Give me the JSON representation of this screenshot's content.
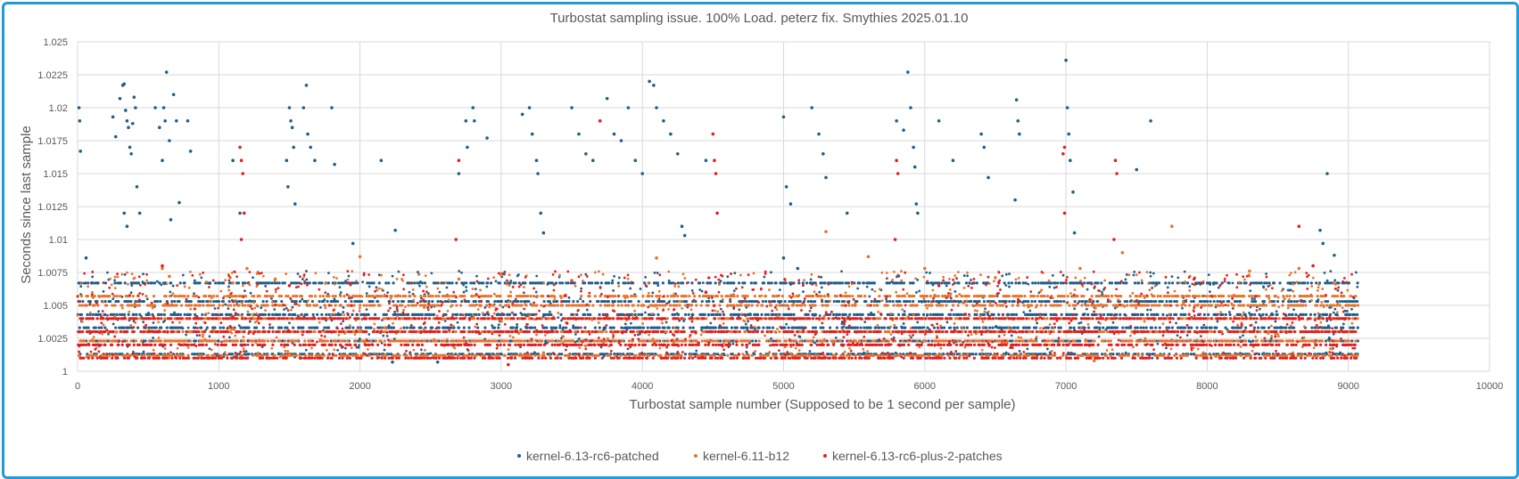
{
  "chart_data": {
    "type": "scatter",
    "title": "Turbostat sampling issue. 100% Load. peterz fix. Smythies 2025.01.10",
    "xlabel": "Turbostat sample number (Supposed to be 1 second per sample)",
    "ylabel": "Seconds since last sample",
    "xlim": [
      0,
      10000
    ],
    "ylim": [
      1,
      1.025
    ],
    "x_ticks": [
      "0",
      "1000",
      "2000",
      "3000",
      "4000",
      "5000",
      "6000",
      "7000",
      "8000",
      "9000",
      "10000"
    ],
    "y_ticks": [
      "1",
      "1.0025",
      "1.005",
      "1.0075",
      "1.01",
      "1.0125",
      "1.015",
      "1.0175",
      "1.02",
      "1.0225",
      "1.025"
    ],
    "grid": true,
    "legend_position": "bottom",
    "series": [
      {
        "name": "kernel-6.13-rc6-patched",
        "color": "#1f5f8b",
        "bands": [
          1.0013,
          1.0023,
          1.0033,
          1.0043,
          1.0053,
          1.0067
        ],
        "points": [
          [
            10,
            1.02
          ],
          [
            15,
            1.019
          ],
          [
            20,
            1.0167
          ],
          [
            60,
            1.0086
          ],
          [
            100,
            1.0067
          ],
          [
            250,
            1.0193
          ],
          [
            270,
            1.0178
          ],
          [
            300,
            1.0207
          ],
          [
            320,
            1.0217
          ],
          [
            330,
            1.0218
          ],
          [
            340,
            1.0198
          ],
          [
            350,
            1.019
          ],
          [
            360,
            1.0185
          ],
          [
            370,
            1.017
          ],
          [
            380,
            1.0165
          ],
          [
            390,
            1.0188
          ],
          [
            400,
            1.0208
          ],
          [
            410,
            1.02
          ],
          [
            420,
            1.014
          ],
          [
            440,
            1.012
          ],
          [
            330,
            1.012
          ],
          [
            350,
            1.011
          ],
          [
            550,
            1.02
          ],
          [
            580,
            1.0185
          ],
          [
            600,
            1.016
          ],
          [
            610,
            1.02
          ],
          [
            620,
            1.019
          ],
          [
            630,
            1.0227
          ],
          [
            650,
            1.0175
          ],
          [
            660,
            1.0115
          ],
          [
            680,
            1.021
          ],
          [
            700,
            1.019
          ],
          [
            720,
            1.0128
          ],
          [
            800,
            1.0167
          ],
          [
            780,
            1.019
          ],
          [
            1100,
            1.016
          ],
          [
            1150,
            1.012
          ],
          [
            1500,
            1.02
          ],
          [
            1510,
            1.019
          ],
          [
            1520,
            1.0185
          ],
          [
            1530,
            1.017
          ],
          [
            1480,
            1.016
          ],
          [
            1490,
            1.014
          ],
          [
            1540,
            1.0127
          ],
          [
            1600,
            1.02
          ],
          [
            1620,
            1.0217
          ],
          [
            1630,
            1.018
          ],
          [
            1650,
            1.017
          ],
          [
            1680,
            1.016
          ],
          [
            1800,
            1.02
          ],
          [
            1820,
            1.0157
          ],
          [
            2150,
            1.016
          ],
          [
            2800,
            1.02
          ],
          [
            2810,
            1.019
          ],
          [
            2750,
            1.019
          ],
          [
            2760,
            1.017
          ],
          [
            2700,
            1.015
          ],
          [
            2900,
            1.0177
          ],
          [
            3150,
            1.0195
          ],
          [
            3200,
            1.02
          ],
          [
            3220,
            1.018
          ],
          [
            3250,
            1.016
          ],
          [
            3260,
            1.015
          ],
          [
            3280,
            1.012
          ],
          [
            3300,
            1.0105
          ],
          [
            3500,
            1.02
          ],
          [
            3550,
            1.018
          ],
          [
            3600,
            1.0165
          ],
          [
            3650,
            1.016
          ],
          [
            3700,
            1.019
          ],
          [
            3750,
            1.0207
          ],
          [
            3800,
            1.018
          ],
          [
            3850,
            1.0175
          ],
          [
            3900,
            1.02
          ],
          [
            3950,
            1.016
          ],
          [
            4000,
            1.015
          ],
          [
            4050,
            1.022
          ],
          [
            4080,
            1.0217
          ],
          [
            4100,
            1.02
          ],
          [
            4150,
            1.019
          ],
          [
            4200,
            1.018
          ],
          [
            4250,
            1.0165
          ],
          [
            4300,
            1.0103
          ],
          [
            4280,
            1.011
          ],
          [
            4450,
            1.016
          ],
          [
            5000,
            1.0193
          ],
          [
            5050,
            1.0127
          ],
          [
            5020,
            1.014
          ],
          [
            5200,
            1.02
          ],
          [
            5250,
            1.018
          ],
          [
            5280,
            1.0165
          ],
          [
            5300,
            1.0147
          ],
          [
            5450,
            1.012
          ],
          [
            5800,
            1.019
          ],
          [
            5850,
            1.0183
          ],
          [
            5880,
            1.0227
          ],
          [
            5900,
            1.02
          ],
          [
            5920,
            1.017
          ],
          [
            5930,
            1.0155
          ],
          [
            5940,
            1.0127
          ],
          [
            5950,
            1.012
          ],
          [
            6100,
            1.019
          ],
          [
            6200,
            1.016
          ],
          [
            6400,
            1.018
          ],
          [
            6420,
            1.017
          ],
          [
            6450,
            1.0147
          ],
          [
            6650,
            1.0206
          ],
          [
            6660,
            1.019
          ],
          [
            6670,
            1.018
          ],
          [
            6640,
            1.013
          ],
          [
            7000,
            1.0236
          ],
          [
            7010,
            1.02
          ],
          [
            7020,
            1.018
          ],
          [
            7030,
            1.016
          ],
          [
            7050,
            1.0136
          ],
          [
            7060,
            1.0105
          ],
          [
            7600,
            1.019
          ],
          [
            7500,
            1.0153
          ],
          [
            8800,
            1.0107
          ],
          [
            8850,
            1.015
          ],
          [
            8820,
            1.0097
          ],
          [
            8900,
            1.0088
          ],
          [
            2250,
            1.0107
          ],
          [
            1950,
            1.0097
          ],
          [
            2230,
            1.0007
          ],
          [
            2550,
            1.0007
          ],
          [
            5000,
            1.0086
          ],
          [
            5100,
            1.0078
          ]
        ]
      },
      {
        "name": "kernel-6.11-b12",
        "color": "#e8742b",
        "bands": [
          1.0012,
          1.0023,
          1.003,
          1.004,
          1.005,
          1.0057
        ],
        "points": [
          [
            600,
            1.0078
          ],
          [
            650,
            1.0072
          ],
          [
            1100,
            1.0067
          ],
          [
            1200,
            1.0078
          ],
          [
            2000,
            1.0087
          ],
          [
            2700,
            1.007
          ],
          [
            3000,
            1.0073
          ],
          [
            3500,
            1.0069
          ],
          [
            4100,
            1.0086
          ],
          [
            5300,
            1.0106
          ],
          [
            5600,
            1.0087
          ],
          [
            6000,
            1.0078
          ],
          [
            6500,
            1.0071
          ],
          [
            7100,
            1.0078
          ],
          [
            7400,
            1.009
          ],
          [
            7750,
            1.011
          ],
          [
            8300,
            1.0076
          ],
          [
            8650,
            1.0078
          ],
          [
            8900,
            1.0067
          ],
          [
            1400,
            1.007
          ],
          [
            7200,
            1.0008
          ],
          [
            3300,
            1.0014
          ],
          [
            2400,
            1.0011
          ]
        ]
      },
      {
        "name": "kernel-6.13-rc6-plus-2-patches",
        "color": "#e21f1f",
        "bands": [
          1.001,
          1.002,
          1.003,
          1.004
        ],
        "points": [
          [
            1150,
            1.017
          ],
          [
            1160,
            1.016
          ],
          [
            1170,
            1.015
          ],
          [
            1180,
            1.012
          ],
          [
            1160,
            1.01
          ],
          [
            2700,
            1.016
          ],
          [
            2680,
            1.01
          ],
          [
            3700,
            1.019
          ],
          [
            4500,
            1.018
          ],
          [
            4510,
            1.016
          ],
          [
            4520,
            1.015
          ],
          [
            4530,
            1.012
          ],
          [
            5800,
            1.016
          ],
          [
            5810,
            1.015
          ],
          [
            5790,
            1.01
          ],
          [
            6990,
            1.017
          ],
          [
            6980,
            1.0165
          ],
          [
            6990,
            1.012
          ],
          [
            7350,
            1.016
          ],
          [
            7360,
            1.015
          ],
          [
            7340,
            1.01
          ],
          [
            8650,
            1.011
          ],
          [
            8750,
            1.008
          ],
          [
            3050,
            1.0005
          ],
          [
            1500,
            1.0065
          ],
          [
            600,
            1.008
          ],
          [
            4450,
            1.006
          ],
          [
            6100,
            1.0065
          ]
        ]
      }
    ]
  }
}
